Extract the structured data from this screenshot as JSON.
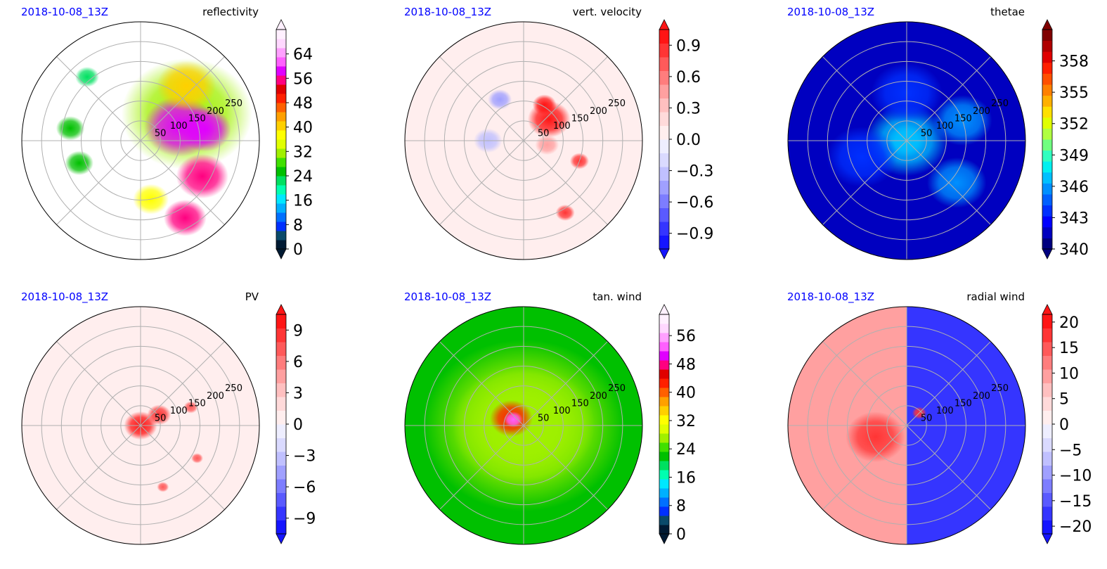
{
  "figure": {
    "panels": [
      {
        "id": "reflectivity",
        "timestamp": "2018-10-08_13Z",
        "title": "reflectivity"
      },
      {
        "id": "vert-velocity",
        "timestamp": "2018-10-08_13Z",
        "title": "vert. velocity"
      },
      {
        "id": "thetae",
        "timestamp": "2018-10-08_13Z",
        "title": "thetae"
      },
      {
        "id": "pv",
        "timestamp": "2018-10-08_13Z",
        "title": "PV"
      },
      {
        "id": "tan-wind",
        "timestamp": "2018-10-08_13Z",
        "title": "tan. wind"
      },
      {
        "id": "radial-wind",
        "timestamp": "2018-10-08_13Z",
        "title": "radial wind"
      }
    ]
  },
  "chart_data": [
    {
      "type": "heatmap",
      "projection": "polar",
      "title": "reflectivity",
      "timestamp": "2018-10-08_13Z",
      "radial_ticks": [
        "50",
        "100",
        "150",
        "200",
        "250"
      ],
      "rlim": [
        0,
        300
      ],
      "grid": true,
      "colorbar": {
        "ticks": [
          "0",
          "8",
          "16",
          "24",
          "32",
          "40",
          "48",
          "56",
          "64"
        ],
        "range": [
          0,
          72
        ],
        "extend": "both",
        "colors": [
          "#001a33",
          "#0a4a6a",
          "#0030ff",
          "#0070ff",
          "#00b0ff",
          "#00e8ff",
          "#00ffb0",
          "#00e060",
          "#00c000",
          "#40e000",
          "#a0f000",
          "#e0ff00",
          "#ffff00",
          "#ffd000",
          "#ffa000",
          "#ff6000",
          "#ff2000",
          "#e00000",
          "#ff0080",
          "#e000ff",
          "#ff60ff",
          "#ffa0ff",
          "#ffd8ff",
          "#fff0ff"
        ]
      }
    },
    {
      "type": "heatmap",
      "projection": "polar",
      "title": "vert. velocity",
      "timestamp": "2018-10-08_13Z",
      "radial_ticks": [
        "50",
        "100",
        "150",
        "200",
        "250"
      ],
      "rlim": [
        0,
        300
      ],
      "grid": true,
      "colorbar": {
        "ticks": [
          "−0.9",
          "−0.6",
          "−0.3",
          "0.0",
          "0.3",
          "0.6",
          "0.9"
        ],
        "range": [
          -1.05,
          1.05
        ],
        "extend": "both",
        "colors": [
          "#1515ff",
          "#3535ff",
          "#5a5aff",
          "#7d7dff",
          "#a0a0ff",
          "#c0c0ff",
          "#dadaff",
          "#eeeeff",
          "#ffeeee",
          "#ffdada",
          "#ffc0c0",
          "#ffa0a0",
          "#ff7d7d",
          "#ff5a5a",
          "#ff3535",
          "#ff1515"
        ]
      }
    },
    {
      "type": "heatmap",
      "projection": "polar",
      "title": "thetae",
      "timestamp": "2018-10-08_13Z",
      "radial_ticks": [
        "50",
        "100",
        "150",
        "200",
        "250"
      ],
      "rlim": [
        0,
        300
      ],
      "grid": true,
      "colorbar": {
        "ticks": [
          "340",
          "343",
          "346",
          "349",
          "352",
          "355",
          "358"
        ],
        "range": [
          340,
          361
        ],
        "extend": "both",
        "colors": [
          "#00007f",
          "#0000c0",
          "#0000ff",
          "#0030ff",
          "#0060ff",
          "#0090ff",
          "#00c0ff",
          "#00f0f0",
          "#30ffc0",
          "#70ff80",
          "#b0ff40",
          "#e0ff00",
          "#ffe000",
          "#ffb000",
          "#ff8000",
          "#ff5000",
          "#ff2000",
          "#e00000",
          "#b00000",
          "#800000"
        ]
      }
    },
    {
      "type": "heatmap",
      "projection": "polar",
      "title": "PV",
      "timestamp": "2018-10-08_13Z",
      "radial_ticks": [
        "50",
        "100",
        "150",
        "200",
        "250"
      ],
      "rlim": [
        0,
        300
      ],
      "grid": true,
      "colorbar": {
        "ticks": [
          "−9",
          "−6",
          "−3",
          "0",
          "3",
          "6",
          "9"
        ],
        "range": [
          -10.5,
          10.5
        ],
        "extend": "both",
        "colors": [
          "#1515ff",
          "#3535ff",
          "#5a5aff",
          "#7d7dff",
          "#a0a0ff",
          "#c0c0ff",
          "#dadaff",
          "#eeeeff",
          "#ffeeee",
          "#ffdada",
          "#ffc0c0",
          "#ffa0a0",
          "#ff7d7d",
          "#ff5a5a",
          "#ff3535",
          "#ff1515"
        ]
      }
    },
    {
      "type": "heatmap",
      "projection": "polar",
      "title": "tan. wind",
      "timestamp": "2018-10-08_13Z",
      "radial_ticks": [
        "50",
        "100",
        "150",
        "200",
        "250"
      ],
      "rlim": [
        0,
        300
      ],
      "grid": true,
      "colorbar": {
        "ticks": [
          "0",
          "8",
          "16",
          "24",
          "32",
          "40",
          "48",
          "56"
        ],
        "range": [
          0,
          62
        ],
        "extend": "both",
        "colors": [
          "#001a33",
          "#0a4a6a",
          "#0030ff",
          "#0070ff",
          "#00b0ff",
          "#00e8ff",
          "#00ffb0",
          "#00e060",
          "#00c000",
          "#40e000",
          "#a0f000",
          "#e0ff00",
          "#ffff00",
          "#ffd000",
          "#ffa000",
          "#ff6000",
          "#ff2000",
          "#e00000",
          "#ff0080",
          "#e000ff",
          "#ff60ff",
          "#ffa0ff",
          "#ffd8ff",
          "#fff0ff"
        ]
      }
    },
    {
      "type": "heatmap",
      "projection": "polar",
      "title": "radial wind",
      "timestamp": "2018-10-08_13Z",
      "radial_ticks": [
        "50",
        "100",
        "150",
        "200",
        "250"
      ],
      "rlim": [
        0,
        300
      ],
      "grid": true,
      "colorbar": {
        "ticks": [
          "−20",
          "−15",
          "−10",
          "−5",
          "0",
          "5",
          "10",
          "15",
          "20"
        ],
        "range": [
          -21.5,
          21.5
        ],
        "extend": "both",
        "colors": [
          "#1515ff",
          "#3535ff",
          "#5a5aff",
          "#7d7dff",
          "#a0a0ff",
          "#c0c0ff",
          "#dadaff",
          "#eeeeff",
          "#ffeeee",
          "#ffdada",
          "#ffc0c0",
          "#ffa0a0",
          "#ff7d7d",
          "#ff5a5a",
          "#ff3535",
          "#ff1515"
        ]
      }
    }
  ]
}
